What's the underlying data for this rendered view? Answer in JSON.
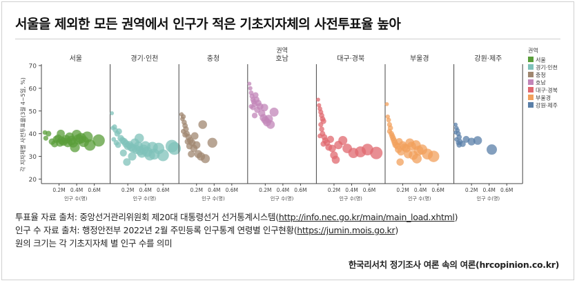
{
  "title": "서울을 제외한 모든 권역에서 인구가 적은 기초지자체의 사전투표율 높아",
  "notes": {
    "vote_prefix": "투표율 자료 출처: 중앙선거관리위원회 제20대 대통령선거 선거통계시스템(",
    "vote_link": "http://info.nec.go.kr/main/main_load.xhtml",
    "vote_suffix": ")",
    "pop_prefix": "인구 수 자료 출처: 행정안전부 2022년 2월 주민등록 인구통계 연령별 인구현황(",
    "pop_link": "https://jumin.mois.go.kr",
    "pop_suffix": ")",
    "size_note": "원의 크기는 각 기초지자체 별 인구 수를 의미"
  },
  "credit": "한국리서치 정기조사 여론 속의 여론(hrcopinion.co.kr)",
  "chart_data": {
    "type": "scatter",
    "facet_label": "권역",
    "ylabel": "각 지자체별 사전투표율(3월 4~5일, %)",
    "xlabel": "인구 수(명)",
    "ylim": [
      18,
      70
    ],
    "yticks": [
      20,
      30,
      40,
      50,
      60,
      70
    ],
    "xlim": [
      0,
      0.78
    ],
    "xticks": [
      0.2,
      0.4,
      0.6
    ],
    "xtick_labels": [
      "0.2M",
      "0.4M",
      "0.6M"
    ],
    "grid": false,
    "legend_position": "right",
    "legend_title": "권역",
    "series": [
      {
        "name": "서울",
        "color": "#5a9e3a",
        "points": [
          [
            0.12,
            36.5
          ],
          [
            0.15,
            35.5
          ],
          [
            0.17,
            37.5
          ],
          [
            0.19,
            38.0
          ],
          [
            0.21,
            36.0
          ],
          [
            0.23,
            37.0
          ],
          [
            0.25,
            36.5
          ],
          [
            0.28,
            37.5
          ],
          [
            0.3,
            36.0
          ],
          [
            0.32,
            38.5
          ],
          [
            0.34,
            37.0
          ],
          [
            0.36,
            36.0
          ],
          [
            0.4,
            39.5
          ],
          [
            0.42,
            37.5
          ],
          [
            0.45,
            38.0
          ],
          [
            0.48,
            36.5
          ],
          [
            0.52,
            38.5
          ],
          [
            0.55,
            35.0
          ],
          [
            0.65,
            37.0
          ],
          [
            0.08,
            40.0
          ],
          [
            0.04,
            40.5
          ],
          [
            0.05,
            38.0
          ],
          [
            0.22,
            40.0
          ],
          [
            0.38,
            34.0
          ]
        ]
      },
      {
        "name": "경기·인천",
        "color": "#7fc2ba",
        "points": [
          [
            0.02,
            49.0
          ],
          [
            0.03,
            42.5
          ],
          [
            0.05,
            43.0
          ],
          [
            0.06,
            41.5
          ],
          [
            0.08,
            40.0
          ],
          [
            0.1,
            41.0
          ],
          [
            0.07,
            36.0
          ],
          [
            0.09,
            35.0
          ],
          [
            0.12,
            38.0
          ],
          [
            0.14,
            37.0
          ],
          [
            0.16,
            36.5
          ],
          [
            0.18,
            35.5
          ],
          [
            0.2,
            34.5
          ],
          [
            0.22,
            35.0
          ],
          [
            0.24,
            34.0
          ],
          [
            0.26,
            33.5
          ],
          [
            0.28,
            36.0
          ],
          [
            0.3,
            33.0
          ],
          [
            0.32,
            34.5
          ],
          [
            0.34,
            32.5
          ],
          [
            0.36,
            31.5
          ],
          [
            0.38,
            33.0
          ],
          [
            0.4,
            34.5
          ],
          [
            0.42,
            32.0
          ],
          [
            0.45,
            30.5
          ],
          [
            0.5,
            31.0
          ],
          [
            0.55,
            33.5
          ],
          [
            0.6,
            30.5
          ],
          [
            0.7,
            34.5
          ],
          [
            0.73,
            33.5
          ],
          [
            0.04,
            37.5
          ],
          [
            0.15,
            31.5
          ],
          [
            0.25,
            30.0
          ],
          [
            0.19,
            27.5
          ],
          [
            0.48,
            34.0
          ],
          [
            0.33,
            38.0
          ]
        ]
      },
      {
        "name": "충청",
        "color": "#a08770",
        "points": [
          [
            0.03,
            48.5
          ],
          [
            0.04,
            46.5
          ],
          [
            0.05,
            47.5
          ],
          [
            0.06,
            45.0
          ],
          [
            0.07,
            43.5
          ],
          [
            0.08,
            42.0
          ],
          [
            0.05,
            41.0
          ],
          [
            0.07,
            39.5
          ],
          [
            0.09,
            40.0
          ],
          [
            0.11,
            38.5
          ],
          [
            0.1,
            36.5
          ],
          [
            0.13,
            37.0
          ],
          [
            0.15,
            36.0
          ],
          [
            0.12,
            34.5
          ],
          [
            0.17,
            33.5
          ],
          [
            0.2,
            35.0
          ],
          [
            0.22,
            31.0
          ],
          [
            0.25,
            30.0
          ],
          [
            0.3,
            29.0
          ],
          [
            0.38,
            36.0
          ],
          [
            0.27,
            44.0
          ],
          [
            0.18,
            39.0
          ],
          [
            0.14,
            31.0
          ]
        ]
      },
      {
        "name": "호남",
        "color": "#c285b8",
        "points": [
          [
            0.02,
            62.0
          ],
          [
            0.03,
            60.0
          ],
          [
            0.04,
            58.0
          ],
          [
            0.05,
            56.5
          ],
          [
            0.06,
            55.0
          ],
          [
            0.07,
            54.0
          ],
          [
            0.08,
            53.0
          ],
          [
            0.04,
            52.0
          ],
          [
            0.06,
            51.5
          ],
          [
            0.09,
            57.0
          ],
          [
            0.1,
            55.0
          ],
          [
            0.12,
            53.5
          ],
          [
            0.14,
            52.0
          ],
          [
            0.16,
            49.0
          ],
          [
            0.18,
            47.0
          ],
          [
            0.2,
            46.0
          ],
          [
            0.22,
            45.0
          ],
          [
            0.24,
            46.5
          ],
          [
            0.26,
            44.0
          ],
          [
            0.3,
            49.5
          ],
          [
            0.19,
            51.5
          ],
          [
            0.11,
            50.5
          ],
          [
            0.08,
            48.0
          ]
        ]
      },
      {
        "name": "대구·경북",
        "color": "#e0686f",
        "points": [
          [
            0.02,
            55.0
          ],
          [
            0.03,
            52.5
          ],
          [
            0.04,
            51.0
          ],
          [
            0.05,
            49.5
          ],
          [
            0.06,
            48.0
          ],
          [
            0.07,
            46.5
          ],
          [
            0.08,
            45.5
          ],
          [
            0.05,
            44.0
          ],
          [
            0.06,
            42.0
          ],
          [
            0.07,
            40.0
          ],
          [
            0.09,
            38.5
          ],
          [
            0.1,
            37.0
          ],
          [
            0.08,
            35.5
          ],
          [
            0.12,
            36.0
          ],
          [
            0.14,
            34.0
          ],
          [
            0.16,
            37.5
          ],
          [
            0.18,
            33.5
          ],
          [
            0.2,
            30.5
          ],
          [
            0.25,
            35.0
          ],
          [
            0.3,
            37.0
          ],
          [
            0.35,
            33.5
          ],
          [
            0.42,
            31.5
          ],
          [
            0.5,
            32.0
          ],
          [
            0.58,
            33.0
          ],
          [
            0.68,
            31.5
          ],
          [
            0.22,
            28.5
          ],
          [
            0.04,
            39.0
          ]
        ]
      },
      {
        "name": "부울경",
        "color": "#f2a05c",
        "points": [
          [
            0.02,
            53.0
          ],
          [
            0.03,
            47.5
          ],
          [
            0.04,
            46.0
          ],
          [
            0.05,
            44.0
          ],
          [
            0.06,
            42.5
          ],
          [
            0.05,
            41.0
          ],
          [
            0.07,
            40.0
          ],
          [
            0.08,
            39.0
          ],
          [
            0.09,
            38.0
          ],
          [
            0.1,
            37.0
          ],
          [
            0.11,
            36.0
          ],
          [
            0.12,
            35.0
          ],
          [
            0.14,
            34.5
          ],
          [
            0.15,
            33.0
          ],
          [
            0.16,
            36.5
          ],
          [
            0.18,
            32.0
          ],
          [
            0.2,
            35.0
          ],
          [
            0.22,
            34.0
          ],
          [
            0.24,
            33.5
          ],
          [
            0.26,
            31.0
          ],
          [
            0.28,
            36.0
          ],
          [
            0.3,
            34.5
          ],
          [
            0.32,
            30.5
          ],
          [
            0.35,
            35.0
          ],
          [
            0.38,
            32.5
          ],
          [
            0.42,
            33.0
          ],
          [
            0.48,
            31.0
          ],
          [
            0.55,
            30.0
          ],
          [
            0.17,
            27.5
          ],
          [
            0.36,
            29.0
          ]
        ]
      },
      {
        "name": "강원·제주",
        "color": "#5a7fa8",
        "points": [
          [
            0.02,
            44.0
          ],
          [
            0.03,
            42.5
          ],
          [
            0.04,
            41.5
          ],
          [
            0.02,
            40.5
          ],
          [
            0.05,
            40.0
          ],
          [
            0.06,
            38.5
          ],
          [
            0.03,
            37.5
          ],
          [
            0.05,
            36.0
          ],
          [
            0.07,
            36.5
          ],
          [
            0.1,
            35.5
          ],
          [
            0.14,
            37.5
          ],
          [
            0.2,
            36.5
          ],
          [
            0.27,
            37.0
          ],
          [
            0.43,
            33.0
          ],
          [
            0.06,
            35.0
          ]
        ]
      }
    ]
  }
}
